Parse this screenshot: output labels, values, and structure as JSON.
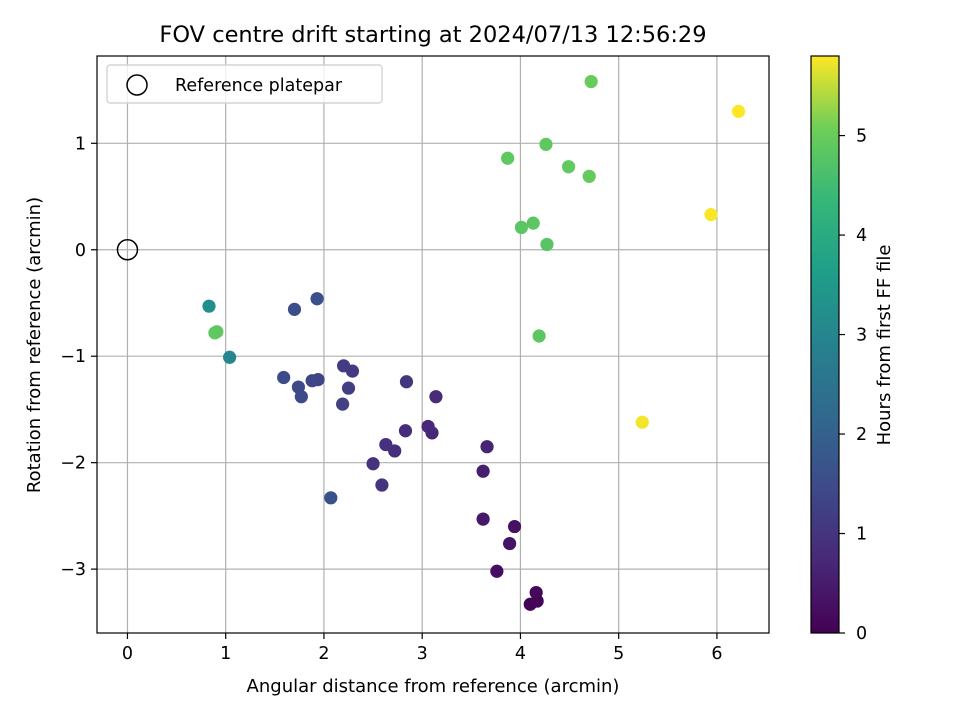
{
  "chart_data": {
    "type": "scatter",
    "title": "FOV centre drift starting at 2024/07/13 12:56:29",
    "xlabel": "Angular distance from reference (arcmin)",
    "ylabel": "Rotation from reference (arcmin)",
    "xlim": [
      -0.31,
      6.53
    ],
    "ylim": [
      -3.6,
      1.82
    ],
    "xticks": [
      0,
      1,
      2,
      3,
      4,
      5,
      6
    ],
    "yticks": [
      -3,
      -2,
      -1,
      0,
      1
    ],
    "grid": true,
    "legend": {
      "placement": "upper-left",
      "entries": [
        "Reference platepar"
      ]
    },
    "reference_point": {
      "x": 0,
      "y": 0
    },
    "colorbar": {
      "label": "Hours from first FF file",
      "range": [
        0,
        5.8
      ],
      "ticks": [
        0,
        1,
        2,
        3,
        4,
        5
      ],
      "colormap": "viridis"
    },
    "points": [
      {
        "x": 4.1,
        "y": -3.33,
        "c": 0.05
      },
      {
        "x": 4.17,
        "y": -3.3,
        "c": 0.08
      },
      {
        "x": 4.16,
        "y": -3.22,
        "c": 0.12
      },
      {
        "x": 3.76,
        "y": -3.02,
        "c": 0.25
      },
      {
        "x": 3.94,
        "y": -2.6,
        "c": 0.3
      },
      {
        "x": 3.89,
        "y": -2.76,
        "c": 0.35
      },
      {
        "x": 3.62,
        "y": -2.53,
        "c": 0.42
      },
      {
        "x": 3.62,
        "y": -2.08,
        "c": 0.55
      },
      {
        "x": 3.66,
        "y": -1.85,
        "c": 0.65
      },
      {
        "x": 3.1,
        "y": -1.72,
        "c": 0.7
      },
      {
        "x": 3.06,
        "y": -1.66,
        "c": 0.75
      },
      {
        "x": 3.14,
        "y": -1.38,
        "c": 0.8
      },
      {
        "x": 2.83,
        "y": -1.7,
        "c": 0.85
      },
      {
        "x": 2.72,
        "y": -1.89,
        "c": 0.88
      },
      {
        "x": 2.63,
        "y": -1.83,
        "c": 0.92
      },
      {
        "x": 2.5,
        "y": -2.01,
        "c": 0.95
      },
      {
        "x": 2.59,
        "y": -2.21,
        "c": 1.0
      },
      {
        "x": 2.84,
        "y": -1.24,
        "c": 1.05
      },
      {
        "x": 2.29,
        "y": -1.14,
        "c": 1.1
      },
      {
        "x": 2.2,
        "y": -1.09,
        "c": 1.15
      },
      {
        "x": 2.25,
        "y": -1.3,
        "c": 1.2
      },
      {
        "x": 2.19,
        "y": -1.45,
        "c": 1.25
      },
      {
        "x": 1.94,
        "y": -1.22,
        "c": 1.3
      },
      {
        "x": 1.88,
        "y": -1.23,
        "c": 1.35
      },
      {
        "x": 1.74,
        "y": -1.29,
        "c": 1.4
      },
      {
        "x": 1.77,
        "y": -1.38,
        "c": 1.45
      },
      {
        "x": 1.59,
        "y": -1.2,
        "c": 1.5
      },
      {
        "x": 1.7,
        "y": -0.56,
        "c": 1.55
      },
      {
        "x": 1.93,
        "y": -0.46,
        "c": 1.6
      },
      {
        "x": 2.07,
        "y": -2.33,
        "c": 1.65
      },
      {
        "x": 1.04,
        "y": -1.01,
        "c": 3.0
      },
      {
        "x": 0.83,
        "y": -0.53,
        "c": 3.2
      },
      {
        "x": 0.91,
        "y": -0.77,
        "c": 4.95
      },
      {
        "x": 0.89,
        "y": -0.78,
        "c": 4.9
      },
      {
        "x": 4.19,
        "y": -0.81,
        "c": 4.85
      },
      {
        "x": 4.27,
        "y": 0.05,
        "c": 4.8
      },
      {
        "x": 4.01,
        "y": 0.21,
        "c": 4.82
      },
      {
        "x": 4.13,
        "y": 0.25,
        "c": 4.85
      },
      {
        "x": 3.87,
        "y": 0.86,
        "c": 4.88
      },
      {
        "x": 4.26,
        "y": 0.99,
        "c": 4.9
      },
      {
        "x": 4.49,
        "y": 0.78,
        "c": 4.92
      },
      {
        "x": 4.7,
        "y": 0.69,
        "c": 4.95
      },
      {
        "x": 4.72,
        "y": 1.58,
        "c": 5.0
      },
      {
        "x": 5.24,
        "y": -1.62,
        "c": 5.75
      },
      {
        "x": 5.94,
        "y": 0.33,
        "c": 5.78
      },
      {
        "x": 6.22,
        "y": 1.3,
        "c": 5.8
      }
    ]
  }
}
